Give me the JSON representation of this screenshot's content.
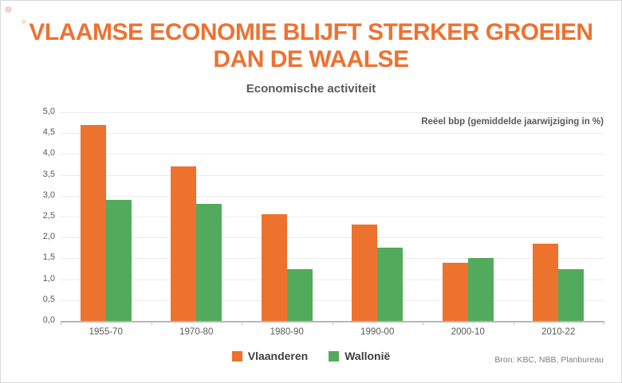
{
  "page": {
    "title_line1": "VLAAMSE ECONOMIE BLIJFT STERKER GROEIEN",
    "title_line2": "DAN DE WAALSE",
    "source": "Bron: KBC, NBB, Planbureau"
  },
  "colors": {
    "title_orange": "#ED7231",
    "vlaanderen_orange": "#ED722D",
    "wallonie_green": "#52AB5C",
    "text_dark": "#595959",
    "legend_text": "#404040",
    "source_gray": "#7F7F7F",
    "gridline": "#EBEBEB",
    "axis": "#B7B7B7"
  },
  "chart_data": {
    "type": "bar",
    "title": "Economische activiteit",
    "annotation": "Reëel bbp (gemiddelde jaarwijziging in %)",
    "categories": [
      "1955-70",
      "1970-80",
      "1980-90",
      "1990-00",
      "2000-10",
      "2010-22"
    ],
    "series": [
      {
        "name": "Vlaanderen",
        "color": "#ED722D",
        "values": [
          4.7,
          3.7,
          2.55,
          2.3,
          1.4,
          1.85
        ]
      },
      {
        "name": "Wallonië",
        "color": "#52AB5C",
        "values": [
          2.9,
          2.8,
          1.25,
          1.75,
          1.5,
          1.25
        ]
      }
    ],
    "ylim": [
      0,
      5
    ],
    "ytick_step": 0.5,
    "ytick_labels": [
      "0,0",
      "0,5",
      "1,0",
      "1,5",
      "2,0",
      "2,5",
      "3,0",
      "3,5",
      "4,0",
      "4,5",
      "5,0"
    ],
    "grid": true,
    "legend_position": "bottom"
  }
}
